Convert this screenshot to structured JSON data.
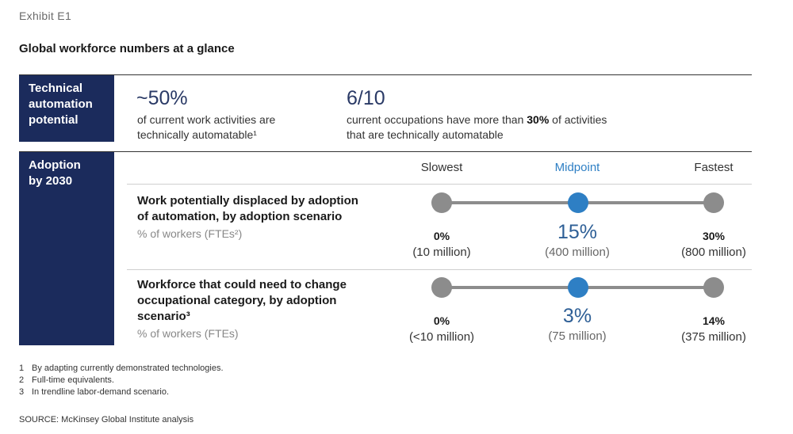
{
  "exhibit": "Exhibit E1",
  "title": "Global workforce numbers at a glance",
  "technical": {
    "label_lines": [
      "Technical",
      "automation",
      "potential"
    ],
    "stat1": {
      "value": "~50%",
      "lines": [
        "of current work activities are",
        "technically automatable¹"
      ]
    },
    "stat2": {
      "value": "6/10",
      "line1_pre": "current occupations have more than ",
      "line1_bold": "30%",
      "line1_post": " of activities",
      "line2": "that are technically automatable"
    }
  },
  "adoption": {
    "label_lines": [
      "Adoption",
      "by 2030"
    ],
    "columns": [
      "Slowest",
      "Midpoint",
      "Fastest"
    ],
    "rows": [
      {
        "label_lines": [
          "Work potentially displaced by adoption",
          "of automation, by adoption scenario"
        ],
        "unit": "% of workers (FTEs²)",
        "values": [
          {
            "pct": "0%",
            "count": "(10 million)"
          },
          {
            "pct": "15%",
            "count": "(400 million)"
          },
          {
            "pct": "30%",
            "count": "(800 million)"
          }
        ]
      },
      {
        "label_lines": [
          "Workforce that could need to change",
          "occupational category, by adoption",
          "scenario³"
        ],
        "unit": "% of workers (FTEs)",
        "values": [
          {
            "pct": "0%",
            "count": "(<10 million)"
          },
          {
            "pct": "3%",
            "count": "(75 million)"
          },
          {
            "pct": "14%",
            "count": "(375 million)"
          }
        ]
      }
    ]
  },
  "footnotes": [
    {
      "num": "1",
      "text": "By adapting currently demonstrated technologies."
    },
    {
      "num": "2",
      "text": "Full-time equivalents."
    },
    {
      "num": "3",
      "text": "In trendline labor-demand scenario."
    }
  ],
  "source": "SOURCE: McKinsey Global Institute analysis",
  "colors": {
    "navy": "#1b2b5c",
    "accent_blue": "#2e7fc4",
    "gray_dot": "#8c8c8c"
  }
}
